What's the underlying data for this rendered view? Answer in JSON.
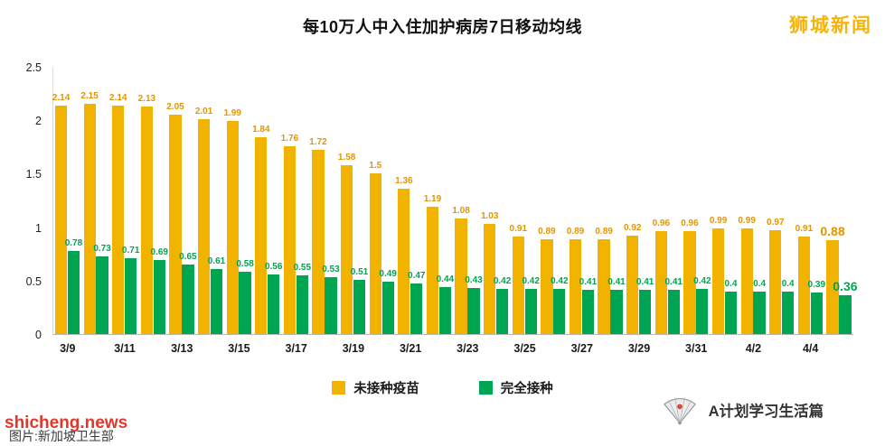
{
  "brand": "狮城新闻",
  "watermark": "shicheng.news",
  "credit": "图片:新加坡卫生部",
  "footer_brand": "A计划学习生活篇",
  "colors": {
    "unvaccinated_bar": "#F2B200",
    "unvaccinated_label": "#E39500",
    "vaccinated_bar": "#00A551",
    "vaccinated_label": "#00A551",
    "brand_text": "#F6B40A",
    "watermark_red": "#E2372C"
  },
  "chart_data": {
    "type": "bar",
    "title": "每10万人中入住加护病房7日移动均线",
    "x_tick_labels": [
      "3/9",
      "3/11",
      "3/13",
      "3/15",
      "3/17",
      "3/19",
      "3/21",
      "3/23",
      "3/25",
      "3/27",
      "3/29",
      "3/31",
      "4/2",
      "4/4"
    ],
    "series": [
      {
        "name": "未接种疫苗",
        "color": "#F2B200",
        "label_color": "#E39500",
        "values": [
          2.14,
          2.15,
          2.14,
          2.13,
          2.05,
          2.01,
          1.99,
          1.84,
          1.76,
          1.72,
          1.58,
          1.5,
          1.36,
          1.19,
          1.08,
          1.03,
          0.91,
          0.89,
          0.89,
          0.89,
          0.92,
          0.96,
          0.96,
          0.99,
          0.99,
          0.97,
          0.91,
          0.88
        ]
      },
      {
        "name": "完全接种",
        "color": "#00A551",
        "label_color": "#00A551",
        "values": [
          0.78,
          0.73,
          0.71,
          0.69,
          0.65,
          0.61,
          0.58,
          0.56,
          0.55,
          0.53,
          0.51,
          0.49,
          0.47,
          0.44,
          0.43,
          0.42,
          0.42,
          0.42,
          0.41,
          0.41,
          0.41,
          0.41,
          0.42,
          0.4,
          0.4,
          0.4,
          0.39,
          0.36
        ]
      }
    ],
    "xlabel": "",
    "ylabel": "",
    "ylim": [
      0,
      2.5
    ],
    "yticks": [
      0,
      0.5,
      1,
      1.5,
      2,
      2.5
    ],
    "grid": false,
    "legend_position": "bottom",
    "emphasize_last_value": true
  }
}
